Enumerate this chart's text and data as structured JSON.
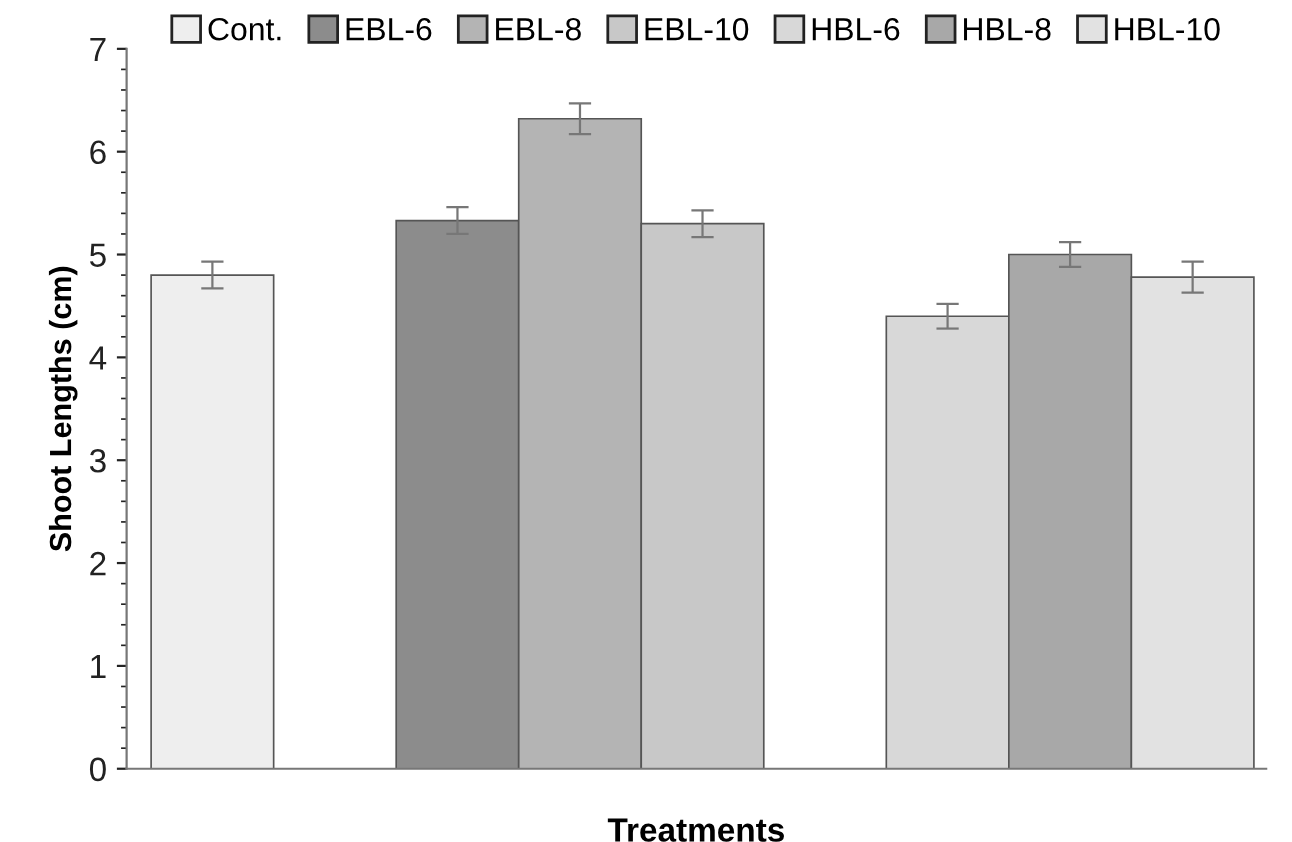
{
  "chart_data": {
    "type": "bar",
    "xlabel": "Treatments",
    "ylabel": "Shoot Lengths (cm)",
    "categories": [
      null,
      null,
      null,
      null,
      null,
      null,
      null,
      null,
      null
    ],
    "series": [
      {
        "name": "Cont.",
        "color": "#eeeeee",
        "values": [
          4.8,
          null,
          null,
          null,
          null,
          null,
          null,
          null,
          null
        ],
        "errors": [
          0.13,
          null,
          null,
          null,
          null,
          null,
          null,
          null,
          null
        ]
      },
      {
        "name": "EBL-6",
        "color": "#8c8c8c",
        "values": [
          null,
          null,
          5.33,
          null,
          null,
          null,
          null,
          null,
          null
        ],
        "errors": [
          null,
          null,
          0.13,
          null,
          null,
          null,
          null,
          null,
          null
        ]
      },
      {
        "name": "EBL-8",
        "color": "#b4b4b4",
        "values": [
          null,
          null,
          null,
          6.32,
          null,
          null,
          null,
          null,
          null
        ],
        "errors": [
          null,
          null,
          null,
          0.15,
          null,
          null,
          null,
          null,
          null
        ]
      },
      {
        "name": "EBL-10",
        "color": "#c8c8c8",
        "values": [
          null,
          null,
          null,
          null,
          5.3,
          null,
          null,
          null,
          null
        ],
        "errors": [
          null,
          null,
          null,
          null,
          0.13,
          null,
          null,
          null,
          null
        ]
      },
      {
        "name": "HBL-6",
        "color": "#d8d8d8",
        "values": [
          null,
          null,
          null,
          null,
          null,
          null,
          4.4,
          null,
          null
        ],
        "errors": [
          null,
          null,
          null,
          null,
          null,
          null,
          0.12,
          null,
          null
        ]
      },
      {
        "name": "HBL-8",
        "color": "#a8a8a8",
        "values": [
          null,
          null,
          null,
          null,
          null,
          null,
          null,
          5.0,
          null
        ],
        "errors": [
          null,
          null,
          null,
          null,
          null,
          null,
          null,
          0.12,
          null
        ]
      },
      {
        "name": "HBL-10",
        "color": "#e2e2e2",
        "values": [
          null,
          null,
          null,
          null,
          null,
          null,
          null,
          null,
          4.78
        ],
        "errors": [
          null,
          null,
          null,
          null,
          null,
          null,
          null,
          null,
          0.15
        ]
      }
    ],
    "ylim": [
      0,
      7
    ],
    "yticks": [
      0,
      1,
      2,
      3,
      4,
      5,
      6,
      7
    ],
    "grid": false,
    "legend": "top"
  }
}
